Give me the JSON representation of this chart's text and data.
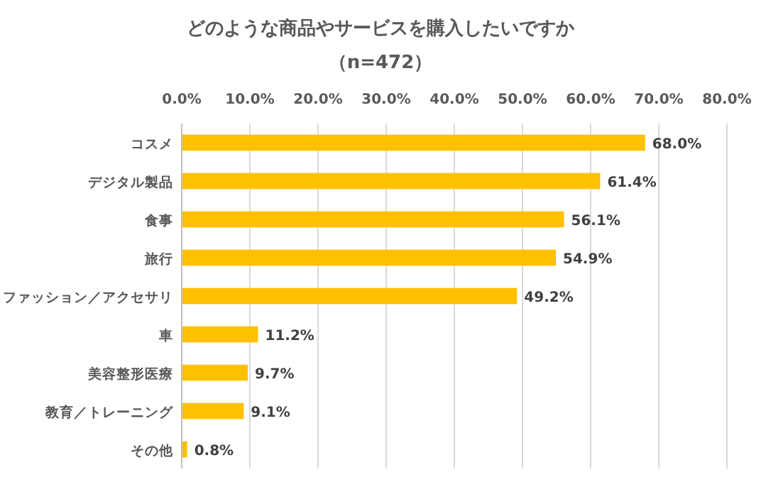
{
  "chart_data": {
    "type": "bar",
    "orientation": "horizontal",
    "title": "どのような商品やサービスを購入したいですか",
    "subtitle": "（n=472）",
    "categories": [
      "コスメ",
      "デジタル製品",
      "食事",
      "旅行",
      "ファッション／アクセサリ",
      "車",
      "美容整形医療",
      "教育／トレーニング",
      "その他"
    ],
    "values": [
      68.0,
      61.4,
      56.1,
      54.9,
      49.2,
      11.2,
      9.7,
      9.1,
      0.8
    ],
    "value_labels": [
      "68.0%",
      "61.4%",
      "56.1%",
      "54.9%",
      "49.2%",
      "11.2%",
      "9.7%",
      "9.1%",
      "0.8%"
    ],
    "color": "#ffc000",
    "xlim": [
      0,
      80
    ],
    "xticks": [
      {
        "value": 0,
        "label": "0.0%"
      },
      {
        "value": 10,
        "label": "10.0%"
      },
      {
        "value": 20,
        "label": "20.0%"
      },
      {
        "value": 30,
        "label": "30.0%"
      },
      {
        "value": 40,
        "label": "40.0%"
      },
      {
        "value": 50,
        "label": "50.0%"
      },
      {
        "value": 60,
        "label": "60.0%"
      },
      {
        "value": 70,
        "label": "70.0%"
      },
      {
        "value": 80,
        "label": "80.0%"
      }
    ],
    "grid": "x"
  }
}
